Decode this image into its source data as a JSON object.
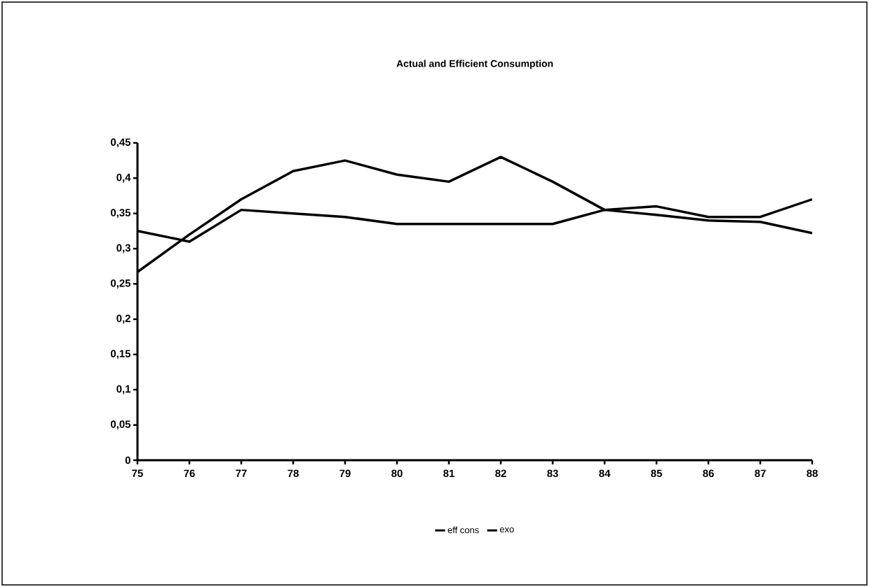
{
  "chart_data": {
    "type": "line",
    "title": "Actual and Efficient Consumption",
    "categories": [
      "75",
      "76",
      "77",
      "78",
      "79",
      "80",
      "81",
      "82",
      "83",
      "84",
      "85",
      "86",
      "87",
      "88"
    ],
    "series": [
      {
        "name": "eff cons",
        "color": "#000000",
        "values": [
          0.325,
          0.31,
          0.355,
          0.35,
          0.345,
          0.335,
          0.335,
          0.335,
          0.335,
          0.355,
          0.348,
          0.34,
          0.338,
          0.322
        ]
      },
      {
        "name": "exo",
        "color": "#000000",
        "values": [
          0.267,
          0.32,
          0.37,
          0.41,
          0.425,
          0.405,
          0.395,
          0.43,
          0.395,
          0.355,
          0.36,
          0.345,
          0.345,
          0.37
        ]
      }
    ],
    "ylim": [
      0,
      0.45
    ],
    "yticks": [
      {
        "value": 0,
        "label": "0"
      },
      {
        "value": 0.05,
        "label": "0,05"
      },
      {
        "value": 0.1,
        "label": "0,1"
      },
      {
        "value": 0.15,
        "label": "0,15"
      },
      {
        "value": 0.2,
        "label": "0,2"
      },
      {
        "value": 0.25,
        "label": "0,25"
      },
      {
        "value": 0.3,
        "label": "0,3"
      },
      {
        "value": 0.35,
        "label": "0,35"
      },
      {
        "value": 0.4,
        "label": "0,4"
      },
      {
        "value": 0.45,
        "label": "0,45"
      }
    ],
    "legend": "bottom",
    "grid": false,
    "marker": "none",
    "line_style": "solid"
  }
}
